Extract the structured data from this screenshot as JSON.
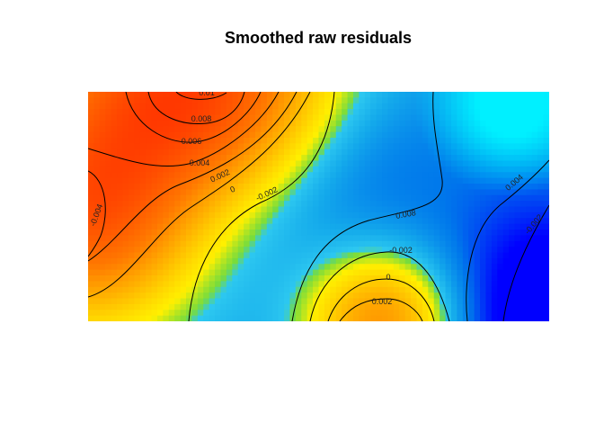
{
  "chart_data": {
    "type": "heatmap",
    "title": "Smoothed raw residuals",
    "xlabel": "",
    "ylabel": "",
    "axes_shown": false,
    "legend": "none",
    "color_scale": {
      "low": "#0000ff",
      "mid": "#00e8ff",
      "zero": "#33c8f0",
      "high_yellow": "#ffff00",
      "high": "#ff3300"
    },
    "features": [
      {
        "kind": "peak",
        "at": "top-left",
        "max": 0.01
      },
      {
        "kind": "peak",
        "at": "bottom-center",
        "max": 0.004
      },
      {
        "kind": "trough",
        "at": "bottom-right",
        "min": -0.004
      },
      {
        "kind": "saddle",
        "at": "top-right",
        "level": -0.002
      }
    ],
    "contours": [
      {
        "level": 0.01,
        "label": "0.01"
      },
      {
        "level": 0.008,
        "label": "0.008"
      },
      {
        "level": 0.006,
        "label": "0.006"
      },
      {
        "level": 0.004,
        "label": "0.004"
      },
      {
        "level": 0.002,
        "label": "0.002"
      },
      {
        "level": 0,
        "label": "0"
      },
      {
        "level": -0.002,
        "label": "-0.002"
      },
      {
        "level": -0.004,
        "label": "-0.004"
      },
      {
        "level": 0.008,
        "label": "0.008"
      },
      {
        "level": -0.002,
        "label": "-0.002"
      },
      {
        "level": 0,
        "label": "0"
      },
      {
        "level": 0.002,
        "label": "0.002"
      },
      {
        "level": 0.004,
        "label": "0.004"
      },
      {
        "level": -0.002,
        "label": "-0.002"
      }
    ]
  }
}
